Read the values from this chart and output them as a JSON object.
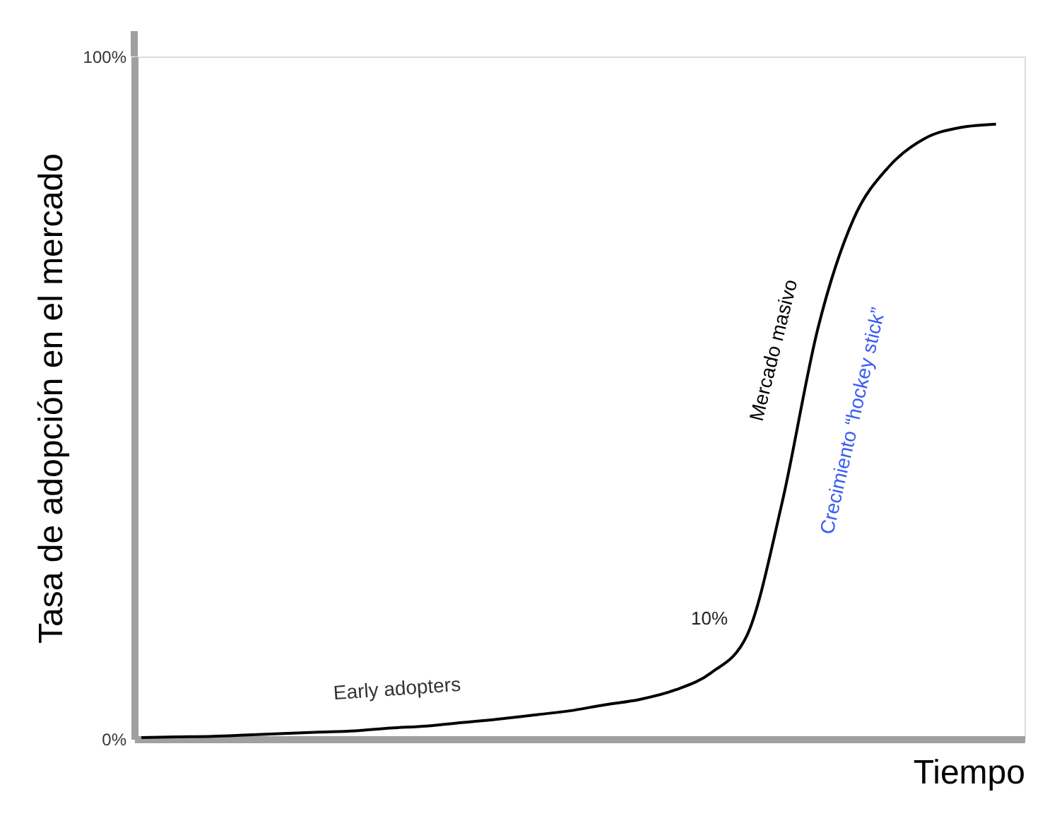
{
  "chart_data": {
    "type": "line",
    "xlabel": "Tiempo",
    "ylabel": "Tasa de adopción en el mercado",
    "categories": [
      null,
      null,
      null,
      null,
      null,
      null,
      null,
      null,
      null,
      null,
      null,
      null,
      null,
      null,
      null,
      null,
      null,
      null,
      null,
      null,
      null,
      null,
      null,
      null,
      null
    ],
    "values": [
      0.2,
      0.3,
      0.4,
      0.6,
      0.8,
      1.0,
      1.2,
      1.6,
      1.9,
      2.4,
      2.9,
      3.5,
      4.1,
      5.0,
      5.8,
      7.2,
      9.7,
      15.1,
      34.8,
      60.2,
      76.2,
      83.9,
      88.0,
      89.6,
      90.1
    ],
    "color": "#000000",
    "ylim": [
      0,
      100
    ],
    "yticks": [
      {
        "value": 0,
        "label": "0%"
      },
      {
        "value": 100,
        "label": "100%"
      }
    ],
    "grid": false,
    "tick_labels": "y",
    "annotations": [
      "Early adopters",
      "10%",
      "Mercado masivo",
      "Crecimiento “hockey stick”"
    ]
  }
}
